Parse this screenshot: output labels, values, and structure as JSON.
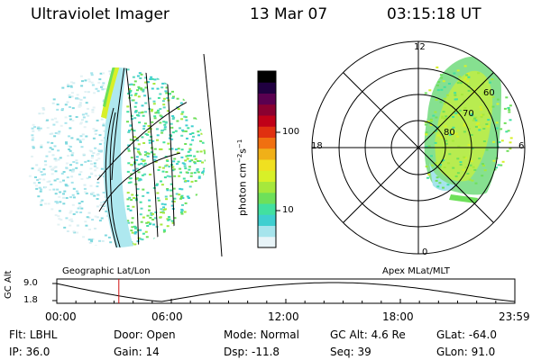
{
  "header": {
    "instrument": "Ultraviolet Imager",
    "date": "13 Mar 07",
    "time": "03:15:18 UT"
  },
  "colorbar": {
    "label_main": "photon cm",
    "label_exp1": "−2",
    "label_mid": "s",
    "label_exp2": "−1",
    "ticks": [
      "100",
      "10"
    ],
    "colors": [
      "#e8f4f8",
      "#a6e4ec",
      "#3fcfd0",
      "#42e0a0",
      "#6ee05a",
      "#a6e83c",
      "#d8f028",
      "#f0e020",
      "#f0b018",
      "#f07010",
      "#e03010",
      "#c00018",
      "#8a0030",
      "#5a0050",
      "#200040",
      "#000000"
    ]
  },
  "geo_panel": {
    "caption": "Geographic Lat/Lon"
  },
  "polar_panel": {
    "caption": "Apex MLat/MLT",
    "mlt_labels": {
      "top": "12",
      "left": "18",
      "right": "6",
      "bottom": "0"
    },
    "lat_labels": [
      "60",
      "70",
      "80"
    ]
  },
  "altitude_plot": {
    "ylabel": "GC Alt",
    "y_ticks": [
      "9.0",
      "1.8"
    ],
    "x_ticks": [
      "00:00",
      "06:00",
      "12:00",
      "18:00",
      "23:59"
    ],
    "marker_time_hours": 3.25,
    "marker_color": "#d01010"
  },
  "status": {
    "row1": [
      {
        "key": "Flt:",
        "value": "LBHL"
      },
      {
        "key": "Door:",
        "value": "Open"
      },
      {
        "key": "Mode:",
        "value": "Normal"
      },
      {
        "key": "GC Alt:",
        "value": "4.6 Re"
      },
      {
        "key": "GLat:",
        "value": "-64.0"
      }
    ],
    "row2": [
      {
        "key": "IP:",
        "value": "36.0"
      },
      {
        "key": "Gain:",
        "value": "14"
      },
      {
        "key": "Dsp:",
        "value": "-11.8"
      },
      {
        "key": "Seq:",
        "value": "39"
      },
      {
        "key": "GLon:",
        "value": "91.0"
      }
    ]
  }
}
